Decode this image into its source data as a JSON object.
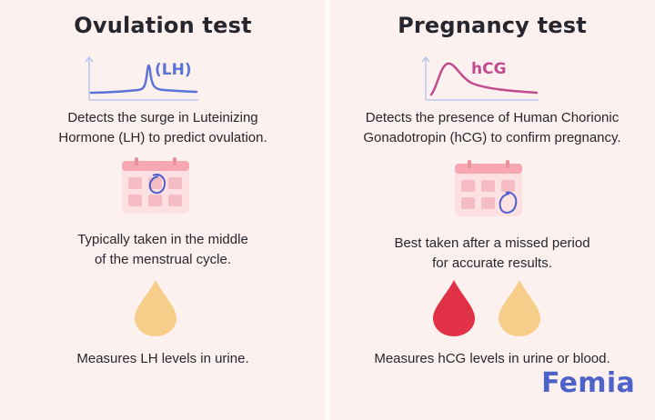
{
  "left": {
    "title": "Ovulation test",
    "graph_label": "(LH)",
    "description": [
      "Detects the surge in Luteinizing",
      "Hormone (LH) to predict ovulation."
    ],
    "timing": [
      "Typically taken in the middle",
      "of the menstrual cycle."
    ],
    "measure": "Measures LH levels in urine.",
    "icons": [
      "lh-surge-graph-icon",
      "calendar-icon",
      "urine-drop-icon"
    ]
  },
  "right": {
    "title": "Pregnancy test",
    "graph_label": "hCG",
    "description": [
      "Detects the presence of Human Chorionic",
      "Gonadotropin (hCG) to confirm pregnancy."
    ],
    "timing": [
      "Best taken after a missed period",
      "for accurate results."
    ],
    "measure": "Measures hCG levels in urine or blood.",
    "icons": [
      "hcg-curve-graph-icon",
      "calendar-icon",
      "blood-drop-icon",
      "urine-drop-icon"
    ]
  },
  "brand": {
    "logo": "Femia"
  },
  "colors": {
    "panel_bg": "#fdf1ef",
    "lh_line": "#5b73d6",
    "hcg_line": "#c24a8e",
    "calendar_pink": "#f6bcc3",
    "blood_red": "#e03146",
    "urine_yellow": "#f7cd8a",
    "brand_blue": "#4d63c9"
  }
}
